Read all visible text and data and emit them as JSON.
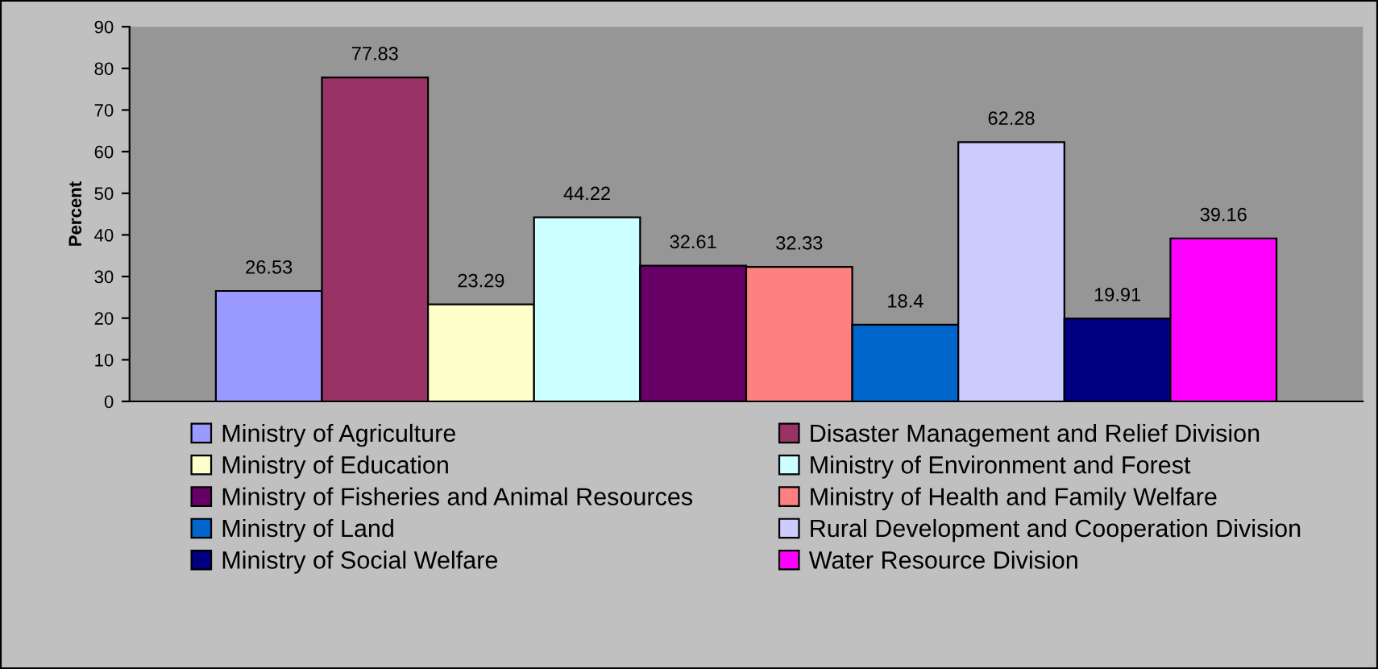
{
  "chart_data": {
    "type": "bar",
    "categories": [
      null
    ],
    "ylabel": "Percent",
    "ylim": [
      0,
      90
    ],
    "yticks": [
      0,
      10,
      20,
      30,
      40,
      50,
      60,
      70,
      80,
      90
    ],
    "grid": false,
    "legend": "bottom",
    "data_labels": true,
    "series": [
      {
        "name": "Ministry of Agriculture",
        "color": "#9999ff",
        "values": [
          26.53
        ]
      },
      {
        "name": "Disaster Management and Relief Division",
        "color": "#993366",
        "values": [
          77.83
        ]
      },
      {
        "name": "Ministry of Education",
        "color": "#ffffcc",
        "values": [
          23.29
        ]
      },
      {
        "name": "Ministry of Environment and Forest",
        "color": "#ccffff",
        "values": [
          44.22
        ]
      },
      {
        "name": "Ministry of Fisheries and Animal Resources",
        "color": "#660066",
        "values": [
          32.61
        ]
      },
      {
        "name": "Ministry of Health and Family Welfare",
        "color": "#ff8080",
        "values": [
          32.33
        ]
      },
      {
        "name": "Ministry of Land",
        "color": "#0066cc",
        "values": [
          18.4
        ]
      },
      {
        "name": "Rural Development and Cooperation Division",
        "color": "#ccccff",
        "values": [
          62.28
        ]
      },
      {
        "name": "Ministry of Social Welfare",
        "color": "#000080",
        "values": [
          19.91
        ]
      },
      {
        "name": "Water Resource Division",
        "color": "#ff00ff",
        "values": [
          39.16
        ]
      }
    ]
  }
}
